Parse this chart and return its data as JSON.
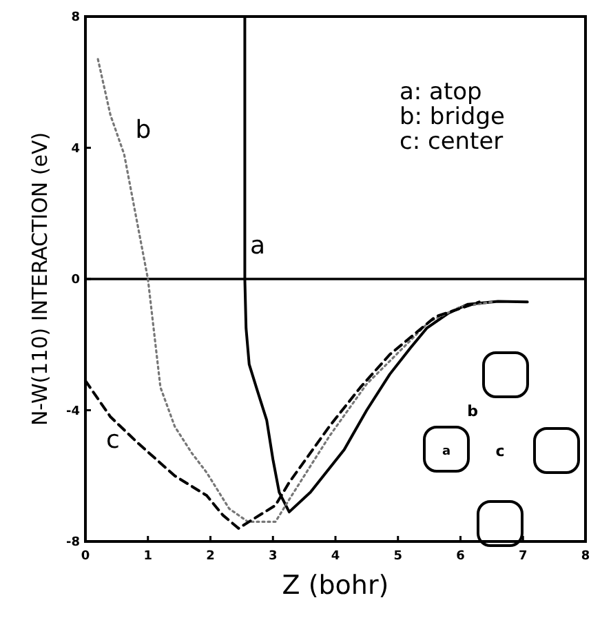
{
  "chart_data": {
    "type": "line",
    "xlabel": "Z (bohr)",
    "ylabel": "N-W(110) INTERACTION (eV)",
    "xlim": [
      0,
      8
    ],
    "ylim": [
      -8,
      8
    ],
    "xticks": [
      0,
      1,
      2,
      3,
      4,
      5,
      6,
      7,
      8
    ],
    "yticks": [
      -8,
      -4,
      0,
      4,
      8
    ],
    "grid": false,
    "ref_lines": [
      {
        "axis": "y",
        "value": 0,
        "color": "#000000"
      }
    ],
    "series": [
      {
        "color": "#000000",
        "line_style": "solid",
        "x": [
          2.55,
          2.55,
          2.57,
          2.62,
          2.75,
          2.9,
          3.0,
          3.1,
          3.26,
          3.6,
          4.14,
          4.5,
          4.87,
          5.2,
          5.46,
          5.8,
          6.12,
          6.6,
          7.07
        ],
        "values": [
          8,
          0,
          -1.5,
          -2.6,
          -3.4,
          -4.3,
          -5.5,
          -6.5,
          -7.1,
          -6.5,
          -5.2,
          -4.0,
          -2.9,
          -2.1,
          -1.5,
          -1.05,
          -0.77,
          -0.68,
          -0.7
        ]
      },
      {
        "color": "#777777",
        "line_style": "dotted",
        "x": [
          0.2,
          0.4,
          0.62,
          0.8,
          1.0,
          1.2,
          1.43,
          1.7,
          1.94,
          2.3,
          2.6,
          3.04,
          3.3,
          3.9,
          4.5,
          4.87,
          5.5,
          6.0,
          6.5
        ],
        "values": [
          6.7,
          5.0,
          3.8,
          2.0,
          0,
          -3.3,
          -4.5,
          -5.3,
          -5.9,
          -7.0,
          -7.4,
          -7.4,
          -6.6,
          -4.8,
          -3.2,
          -2.5,
          -1.3,
          -0.85,
          -0.7
        ]
      },
      {
        "color": "#000000",
        "line_style": "dashed",
        "x": [
          0,
          0.4,
          0.84,
          1.43,
          1.94,
          2.2,
          2.45,
          2.7,
          3.04,
          3.26,
          3.9,
          4.4,
          4.87,
          5.6,
          6.3
        ],
        "values": [
          -3.1,
          -4.2,
          -5.0,
          -6.0,
          -6.6,
          -7.2,
          -7.6,
          -7.3,
          -6.9,
          -6.2,
          -4.5,
          -3.3,
          -2.3,
          -1.15,
          -0.7
        ]
      }
    ],
    "annotations": [
      "a: atop",
      "b: bridge",
      "c: center",
      "a",
      "b",
      "c",
      "a",
      "b",
      "c"
    ]
  }
}
